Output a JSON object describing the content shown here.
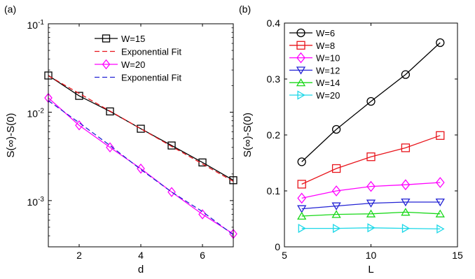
{
  "chart_data": [
    {
      "panel_label": "(a)",
      "type": "line",
      "yscale": "log",
      "xlabel": "d",
      "ylabel": "S(∞)-S(0)",
      "xlim": [
        1,
        7
      ],
      "ylim": [
        0.0003,
        0.1
      ],
      "x_ticks": [
        2,
        4,
        6
      ],
      "y_ticks": [
        {
          "value": 0.001,
          "base": "10",
          "exp": "-3"
        },
        {
          "value": 0.01,
          "base": "10",
          "exp": "-2"
        },
        {
          "value": 0.1,
          "base": "10",
          "exp": "-1"
        }
      ],
      "legend_position": "top-right",
      "series": [
        {
          "name": "W=15",
          "color": "#000000",
          "marker": "square",
          "dash": "none",
          "x": [
            1,
            2,
            3,
            4,
            5,
            6,
            7
          ],
          "y": [
            0.026,
            0.0153,
            0.0102,
            0.0065,
            0.0042,
            0.0027,
            0.0017
          ]
        },
        {
          "name": "Exponential Fit",
          "color": "#e8141b",
          "marker": "none",
          "dash": "dash",
          "x": [
            1,
            2,
            3,
            4,
            5,
            6,
            7
          ],
          "y": [
            0.0258,
            0.0163,
            0.0103,
            0.0065,
            0.0041,
            0.0026,
            0.00165
          ]
        },
        {
          "name": "W=20",
          "color": "#ff00ff",
          "marker": "diamond",
          "dash": "none",
          "x": [
            1,
            2,
            3,
            4,
            5,
            6,
            7
          ],
          "y": [
            0.0145,
            0.0071,
            0.004,
            0.0023,
            0.00125,
            0.0007,
            0.00042
          ]
        },
        {
          "name": "Exponential Fit",
          "color": "#2323d4",
          "marker": "none",
          "dash": "dash",
          "x": [
            1,
            2,
            3,
            4,
            5,
            6,
            7
          ],
          "y": [
            0.0135,
            0.0076,
            0.0042,
            0.00225,
            0.00125,
            0.00075,
            0.00041
          ]
        }
      ]
    },
    {
      "panel_label": "(b)",
      "type": "line",
      "yscale": "linear",
      "xlabel": "L",
      "ylabel": "S(∞)-S(0)",
      "xlim": [
        5,
        15
      ],
      "ylim": [
        0,
        0.4
      ],
      "x_ticks": [
        5,
        10,
        15
      ],
      "y_ticks": [
        0,
        0.1,
        0.2,
        0.3,
        0.4
      ],
      "y_tick_labels": [
        "0",
        "0.1",
        "0.2",
        "0.3",
        "0.4"
      ],
      "legend_position": "top-left",
      "series": [
        {
          "name": "W=6",
          "color": "#000000",
          "marker": "circle",
          "x": [
            6,
            8,
            10,
            12,
            14
          ],
          "y": [
            0.152,
            0.21,
            0.26,
            0.308,
            0.365
          ]
        },
        {
          "name": "W=8",
          "color": "#e8141b",
          "marker": "square",
          "x": [
            6,
            8,
            10,
            12,
            14
          ],
          "y": [
            0.112,
            0.14,
            0.161,
            0.177,
            0.199
          ]
        },
        {
          "name": "W=10",
          "color": "#ff00ff",
          "marker": "diamond",
          "x": [
            6,
            8,
            10,
            12,
            14
          ],
          "y": [
            0.087,
            0.1,
            0.108,
            0.111,
            0.115
          ]
        },
        {
          "name": "W=12",
          "color": "#2323d4",
          "marker": "triangle-down",
          "x": [
            6,
            8,
            10,
            12,
            14
          ],
          "y": [
            0.068,
            0.073,
            0.078,
            0.08,
            0.08
          ]
        },
        {
          "name": "W=14",
          "color": "#18d818",
          "marker": "triangle-up",
          "x": [
            6,
            8,
            10,
            12,
            14
          ],
          "y": [
            0.055,
            0.058,
            0.059,
            0.062,
            0.059
          ]
        },
        {
          "name": "W=20",
          "color": "#1cd8e8",
          "marker": "triangle-right",
          "x": [
            6,
            8,
            10,
            12,
            14
          ],
          "y": [
            0.033,
            0.033,
            0.034,
            0.033,
            0.032
          ]
        }
      ]
    }
  ]
}
